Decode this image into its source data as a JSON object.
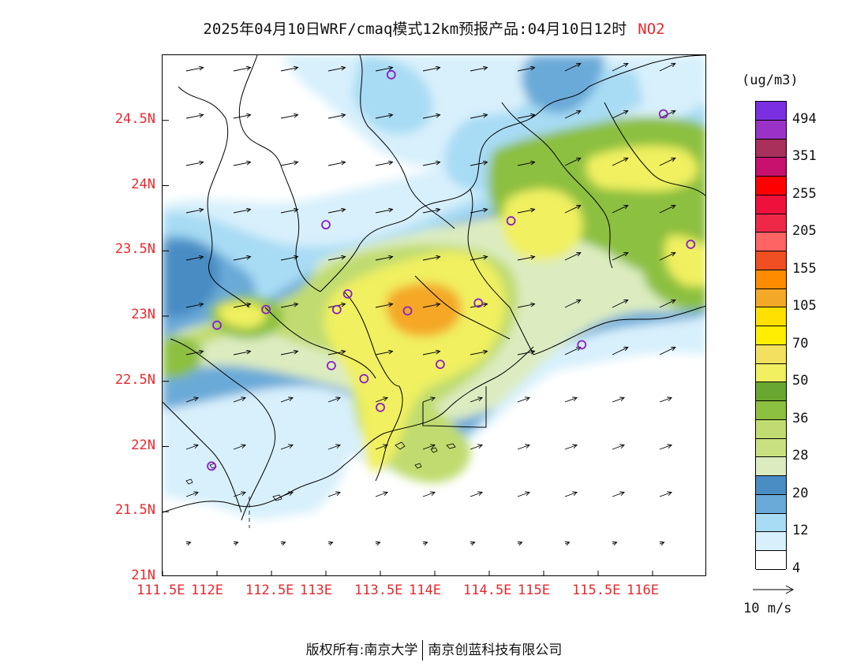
{
  "title": {
    "main": "2025年04月10日WRF/cmaq模式12km预报产品:04月10日12时",
    "pollutant": "NO2"
  },
  "axes": {
    "lat_labels": [
      "24.5N",
      "24N",
      "23.5N",
      "23N",
      "22.5N",
      "22N",
      "21.5N",
      "21N"
    ],
    "lat_values": [
      24.5,
      24,
      23.5,
      23,
      22.5,
      22,
      21.5,
      21
    ],
    "lon_labels": [
      "111.5E",
      "112E",
      "112.5E",
      "113E",
      "113.5E",
      "114E",
      "114.5E",
      "115E",
      "115.5E",
      "116E"
    ],
    "lon_values": [
      111.5,
      112,
      112.5,
      113,
      113.5,
      114,
      114.5,
      115,
      115.5,
      116
    ],
    "lat_range": [
      21,
      25
    ],
    "lon_range": [
      111.5,
      116.5
    ],
    "color": "#e8282e"
  },
  "legend": {
    "unit": "(ug/m3)",
    "colors": [
      "#7a2fe0",
      "#9b32c8",
      "#a8305a",
      "#c8106e",
      "#ff0000",
      "#f0103c",
      "#f02848",
      "#ff6464",
      "#f04f22",
      "#ff8c00",
      "#f4a828",
      "#ffe000",
      "#ffee00",
      "#f4e060",
      "#f0f060",
      "#68a830",
      "#8cc040",
      "#c0dc70",
      "#c8e080",
      "#dcecc0",
      "#4a8cc4",
      "#6aaad8",
      "#a8dcf4",
      "#d8f0fc",
      "#ffffff"
    ],
    "labels": [
      "494",
      "351",
      "255",
      "205",
      "155",
      "105",
      "70",
      "50",
      "36",
      "28",
      "20",
      "12",
      "4"
    ]
  },
  "wind_key": {
    "label": "10 m/s"
  },
  "stations": [
    {
      "lon": 113.6,
      "lat": 24.85
    },
    {
      "lon": 116.1,
      "lat": 24.55
    },
    {
      "lon": 113.0,
      "lat": 23.7
    },
    {
      "lon": 114.7,
      "lat": 23.73
    },
    {
      "lon": 116.35,
      "lat": 23.55
    },
    {
      "lon": 113.2,
      "lat": 23.17
    },
    {
      "lon": 112.45,
      "lat": 23.05
    },
    {
      "lon": 113.1,
      "lat": 23.05
    },
    {
      "lon": 113.75,
      "lat": 23.04
    },
    {
      "lon": 114.4,
      "lat": 23.1
    },
    {
      "lon": 112.0,
      "lat": 22.93
    },
    {
      "lon": 115.35,
      "lat": 22.78
    },
    {
      "lon": 113.05,
      "lat": 22.62
    },
    {
      "lon": 114.05,
      "lat": 22.63
    },
    {
      "lon": 113.35,
      "lat": 22.52
    },
    {
      "lon": 113.5,
      "lat": 22.3
    },
    {
      "lon": 111.95,
      "lat": 21.85
    }
  ],
  "footer": {
    "left": "版权所有:南京大学",
    "right": "南京创蓝科技有限公司"
  }
}
